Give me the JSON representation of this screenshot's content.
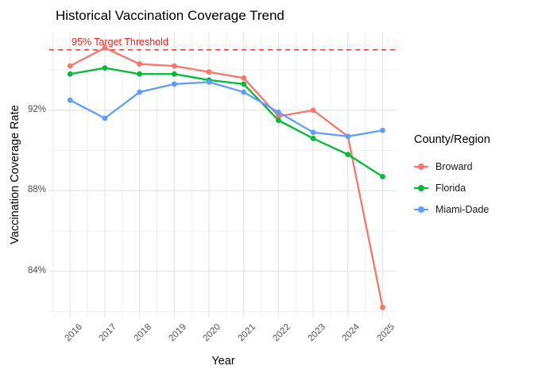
{
  "title": "Historical Vaccination Coverage Trend",
  "chart_data": {
    "type": "line",
    "x": [
      2016,
      2017,
      2018,
      2019,
      2020,
      2021,
      2022,
      2023,
      2024,
      2025
    ],
    "x_labels": [
      "2016",
      "2017",
      "2018",
      "2019",
      "2020",
      "2021",
      "2022",
      "2023",
      "2024",
      "2025"
    ],
    "series": [
      {
        "name": "Broward",
        "color": "#F8766D",
        "values": [
          94.2,
          95.1,
          94.3,
          94.2,
          93.9,
          93.6,
          91.7,
          92.0,
          90.7,
          82.2
        ]
      },
      {
        "name": "Florida",
        "color": "#00BA38",
        "values": [
          93.8,
          94.1,
          93.8,
          93.8,
          93.5,
          93.3,
          91.5,
          90.6,
          89.8,
          88.7
        ]
      },
      {
        "name": "Miami-Dade",
        "color": "#619CFF",
        "values": [
          92.5,
          91.6,
          92.9,
          93.3,
          93.4,
          92.9,
          91.9,
          90.9,
          90.7,
          91.0
        ]
      }
    ],
    "xlabel": "Year",
    "ylabel": "Vaccination Coverage Rate",
    "xlim": [
      2015.4,
      2025.4
    ],
    "ylim": [
      81.7,
      95.9
    ],
    "y_ticks": [
      {
        "value": 84,
        "label": "84%"
      },
      {
        "value": 88,
        "label": "88%"
      },
      {
        "value": 92,
        "label": "92%"
      }
    ],
    "y_minor": [
      82,
      86,
      90,
      94
    ],
    "threshold": {
      "value": 95,
      "label": "95% Target Threshold",
      "color": "#ED2121",
      "dash": "6 5"
    },
    "legend_title": "County/Region",
    "legend_position": "right",
    "grid": true,
    "grid_major_color": "#e5e5e5",
    "grid_minor_color": "#f0f0f0"
  }
}
